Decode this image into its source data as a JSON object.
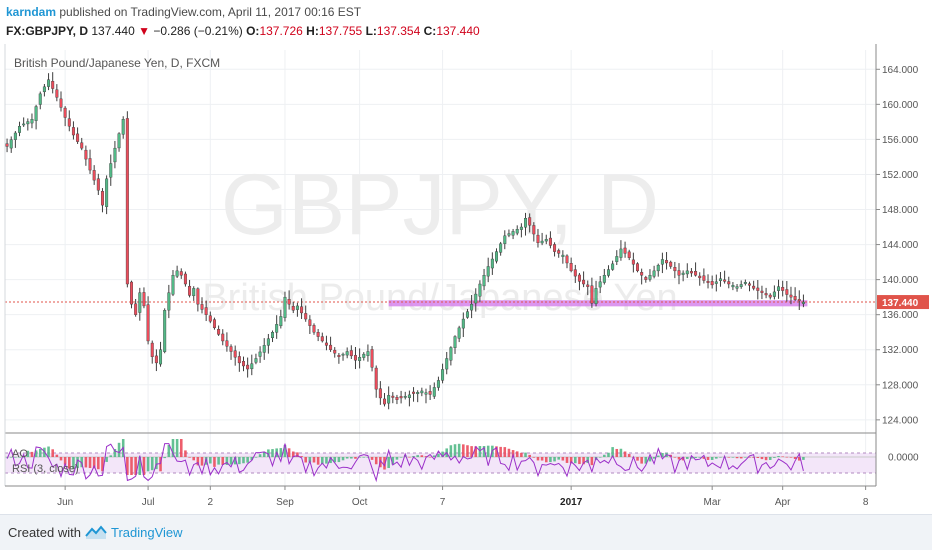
{
  "header": {
    "author": "karndam",
    "published_text": "published on TradingView.com, April 11, 2017 00:16 EST",
    "symbol": "FX:GBPJPY, D",
    "last": "137.440",
    "change": "−0.286 (−0.21%)",
    "o_label": "O:",
    "o_value": "137.726",
    "h_label": "H:",
    "h_value": "137.755",
    "l_label": "L:",
    "l_value": "137.354",
    "c_label": "C:",
    "c_value": "137.440"
  },
  "chart_data": {
    "type": "candlestick",
    "title": "British Pound/Japanese Yen, D, FXCM",
    "watermark_symbol": "GBPJPY, D",
    "watermark_name": "British Pound/Japanese Yen",
    "y_ticks": [
      "164.000",
      "160.000",
      "156.000",
      "152.000",
      "148.000",
      "144.000",
      "140.000",
      "136.000",
      "132.000",
      "128.000",
      "124.000"
    ],
    "y_tick_values": [
      164,
      160,
      156,
      152,
      148,
      144,
      140,
      136,
      132,
      128,
      124
    ],
    "ylim": [
      122.5,
      166.2
    ],
    "x_ticks": [
      {
        "label": "Jun",
        "i": 14,
        "bold": false
      },
      {
        "label": "Jul",
        "i": 34,
        "bold": false
      },
      {
        "label": "2",
        "i": 49,
        "bold": false
      },
      {
        "label": "Sep",
        "i": 67,
        "bold": false
      },
      {
        "label": "Oct",
        "i": 85,
        "bold": false
      },
      {
        "label": "7",
        "i": 105,
        "bold": false
      },
      {
        "label": "2017",
        "i": 136,
        "bold": true
      },
      {
        "label": "Mar",
        "i": 170,
        "bold": false
      },
      {
        "label": "Apr",
        "i": 187,
        "bold": false
      },
      {
        "label": "8",
        "i": 207,
        "bold": false
      }
    ],
    "last_price": 137.44,
    "last_price_label": "137.440",
    "support_zone": {
      "low": 136.95,
      "high": 137.65
    },
    "close_path": [
      [
        0,
        155.2
      ],
      [
        3,
        157.5
      ],
      [
        6,
        158.3
      ],
      [
        8,
        161.2
      ],
      [
        10,
        162.8
      ],
      [
        12,
        160.8
      ],
      [
        14,
        158.5
      ],
      [
        16,
        156.5
      ],
      [
        18,
        155.0
      ],
      [
        20,
        152.5
      ],
      [
        22,
        150.2
      ],
      [
        23,
        148.5
      ],
      [
        24,
        151.5
      ],
      [
        26,
        155.0
      ],
      [
        28,
        158.3
      ],
      [
        29,
        139.5
      ],
      [
        30,
        137.2
      ],
      [
        31,
        136.0
      ],
      [
        32,
        138.5
      ],
      [
        33,
        137.0
      ],
      [
        34,
        133.0
      ],
      [
        35,
        131.2
      ],
      [
        36,
        130.5
      ],
      [
        37,
        132.0
      ],
      [
        38,
        136.5
      ],
      [
        39,
        138.5
      ],
      [
        40,
        140.5
      ],
      [
        41,
        141.0
      ],
      [
        42,
        140.5
      ],
      [
        43,
        139.5
      ],
      [
        44,
        138.2
      ],
      [
        45,
        139.0
      ],
      [
        46,
        137.2
      ],
      [
        48,
        136.0
      ],
      [
        50,
        134.5
      ],
      [
        52,
        133.0
      ],
      [
        54,
        131.8
      ],
      [
        56,
        130.5
      ],
      [
        58,
        129.8
      ],
      [
        60,
        131.0
      ],
      [
        62,
        132.5
      ],
      [
        64,
        134.0
      ],
      [
        66,
        135.8
      ],
      [
        67,
        138.0
      ],
      [
        68,
        137.2
      ],
      [
        69,
        136.5
      ],
      [
        70,
        137.0
      ],
      [
        71,
        136.2
      ],
      [
        72,
        135.5
      ],
      [
        74,
        134.0
      ],
      [
        76,
        133.0
      ],
      [
        78,
        132.0
      ],
      [
        80,
        131.2
      ],
      [
        82,
        131.8
      ],
      [
        84,
        130.8
      ],
      [
        86,
        131.5
      ],
      [
        87,
        131.8
      ],
      [
        88,
        130.0
      ],
      [
        89,
        127.5
      ],
      [
        90,
        126.5
      ],
      [
        91,
        125.8
      ],
      [
        92,
        126.8
      ],
      [
        94,
        126.3
      ],
      [
        96,
        126.7
      ],
      [
        98,
        127.0
      ],
      [
        100,
        127.3
      ],
      [
        102,
        126.9
      ],
      [
        104,
        128.5
      ],
      [
        106,
        131.0
      ],
      [
        108,
        133.5
      ],
      [
        110,
        135.5
      ],
      [
        112,
        137.2
      ],
      [
        114,
        139.5
      ],
      [
        116,
        141.5
      ],
      [
        118,
        143.2
      ],
      [
        120,
        145.0
      ],
      [
        122,
        145.5
      ],
      [
        124,
        146.0
      ],
      [
        125,
        147.0
      ],
      [
        126,
        146.2
      ],
      [
        128,
        144.2
      ],
      [
        130,
        144.6
      ],
      [
        132,
        143.2
      ],
      [
        134,
        142.8
      ],
      [
        136,
        141.0
      ],
      [
        138,
        139.8
      ],
      [
        140,
        139.2
      ],
      [
        141,
        137.3
      ],
      [
        142,
        139.0
      ],
      [
        144,
        140.5
      ],
      [
        146,
        141.8
      ],
      [
        148,
        143.5
      ],
      [
        150,
        142.5
      ],
      [
        152,
        141.0
      ],
      [
        154,
        140.0
      ],
      [
        156,
        141.0
      ],
      [
        158,
        142.3
      ],
      [
        160,
        141.5
      ],
      [
        162,
        140.5
      ],
      [
        164,
        141.0
      ],
      [
        166,
        140.5
      ],
      [
        168,
        139.9
      ],
      [
        170,
        139.4
      ],
      [
        172,
        140.1
      ],
      [
        174,
        139.5
      ],
      [
        176,
        139.2
      ],
      [
        178,
        139.7
      ],
      [
        180,
        139.0
      ],
      [
        182,
        138.5
      ],
      [
        184,
        138.0
      ],
      [
        186,
        139.2
      ],
      [
        188,
        138.3
      ],
      [
        190,
        137.7
      ],
      [
        192,
        137.44
      ]
    ],
    "series": [
      {
        "name": "AO",
        "zero_label": "0.0000"
      },
      {
        "name": "RSI (3, close)",
        "overbought": 80,
        "oversold": 20
      }
    ]
  },
  "footer": {
    "created_with": "Created with",
    "brand": "TradingView"
  },
  "colors": {
    "up": "#53b987",
    "down": "#eb4d5c",
    "wick": "#3d3d3d",
    "support": "#d684ec",
    "last_line": "#e0534a",
    "brand": "#1f96d4",
    "rsi": "#9b30c9"
  }
}
